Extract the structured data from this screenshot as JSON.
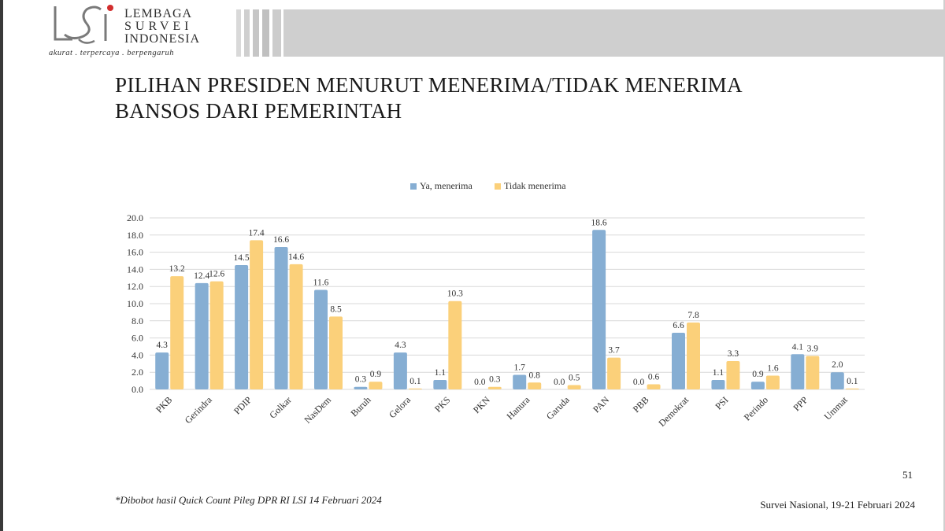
{
  "logo": {
    "lines": [
      "LEMBAGA",
      "SURVEI",
      "INDONESIA"
    ],
    "tagline": "akurat . terpercaya . berpengaruh"
  },
  "title": {
    "line1": "PILIHAN PRESIDEN MENURUT MENERIMA/TIDAK MENERIMA",
    "line2": "BANSOS DARI PEMERINTAH"
  },
  "chart_data": {
    "type": "bar",
    "categories": [
      "PKB",
      "Gerindra",
      "PDIP",
      "Golkar",
      "NasDem",
      "Buruh",
      "Gelora",
      "PKS",
      "PKN",
      "Hanura",
      "Garuda",
      "PAN",
      "PBB",
      "Demokrat",
      "PSI",
      "Perindo",
      "PPP",
      "Ummat"
    ],
    "series": [
      {
        "name": "Ya, menerima",
        "color": "#86aed3",
        "values": [
          4.3,
          12.4,
          14.5,
          16.6,
          11.6,
          0.3,
          4.3,
          1.1,
          0.0,
          1.7,
          0.0,
          18.6,
          0.0,
          6.6,
          1.1,
          0.9,
          4.1,
          2.0
        ]
      },
      {
        "name": "Tidak menerima",
        "color": "#fbd07a",
        "values": [
          13.2,
          12.6,
          17.4,
          14.6,
          8.5,
          0.9,
          0.1,
          10.3,
          0.3,
          0.8,
          0.5,
          3.7,
          0.6,
          7.8,
          3.3,
          1.6,
          3.9,
          0.1
        ]
      }
    ],
    "yticks": [
      "0.0",
      "2.0",
      "4.0",
      "6.0",
      "8.0",
      "10.0",
      "12.0",
      "14.0",
      "16.0",
      "18.0",
      "20.0"
    ],
    "ylim": [
      0,
      20
    ],
    "grid": true,
    "legend": "top-center"
  },
  "page_number": "51",
  "footnote": "*Dibobot hasil Quick Count Pileg DPR RI LSI 14 Februari 2024",
  "survey_info": "Survei Nasional, 19-21 Februari 2024"
}
